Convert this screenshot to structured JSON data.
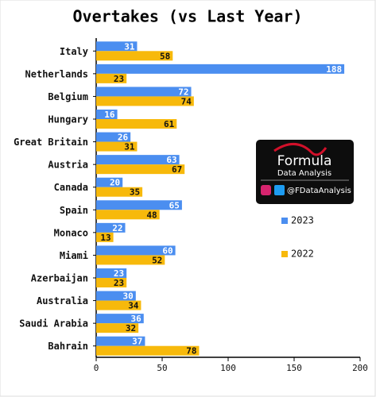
{
  "chart_data": {
    "type": "bar",
    "orientation": "horizontal",
    "title": "Overtakes (vs Last Year)",
    "categories": [
      "Italy",
      "Netherlands",
      "Belgium",
      "Hungary",
      "Great Britain",
      "Austria",
      "Canada",
      "Spain",
      "Monaco",
      "Miami",
      "Azerbaijan",
      "Australia",
      "Saudi Arabia",
      "Bahrain"
    ],
    "series": [
      {
        "name": "2023",
        "color": "#4b8ef0",
        "values": [
          31,
          188,
          72,
          16,
          26,
          63,
          20,
          65,
          22,
          60,
          23,
          30,
          36,
          37
        ]
      },
      {
        "name": "2022",
        "color": "#f7b90b",
        "values": [
          58,
          23,
          74,
          61,
          31,
          67,
          35,
          48,
          13,
          52,
          23,
          34,
          32,
          78
        ]
      }
    ],
    "xlim": [
      0,
      200
    ],
    "xticks": [
      0,
      50,
      100,
      150,
      200
    ],
    "grid": false,
    "annotations": [
      "Formula",
      "Data Analysis",
      "@FDataAnalysis"
    ]
  }
}
